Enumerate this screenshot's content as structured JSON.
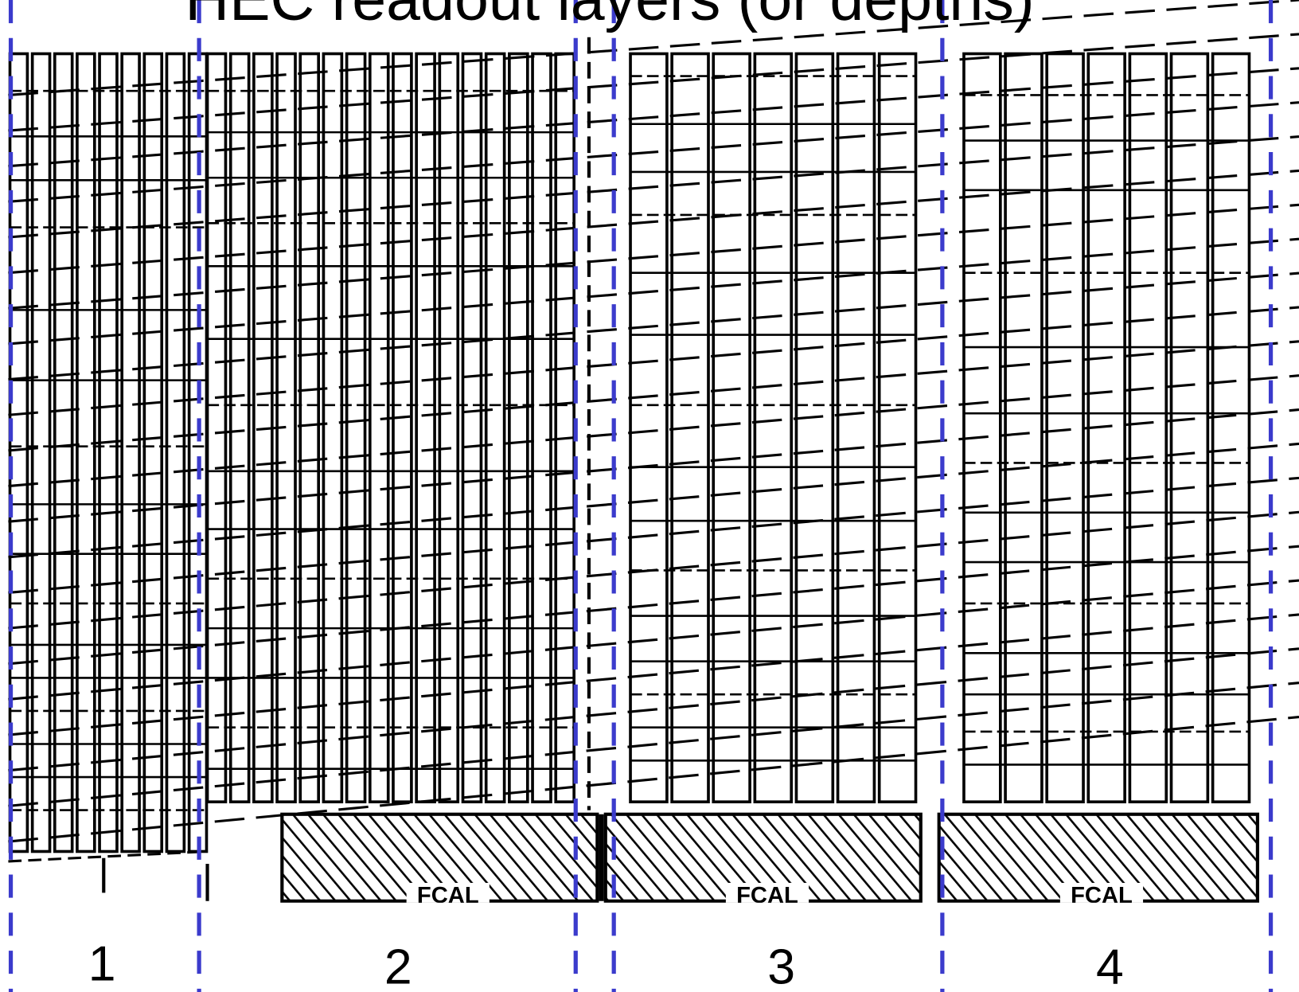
{
  "title": "HEC readout layers (or depths)",
  "layer_labels": [
    "1",
    "2",
    "3",
    "4"
  ],
  "fcal_labels": [
    "FCAL",
    "FCAL",
    "FCAL"
  ]
}
